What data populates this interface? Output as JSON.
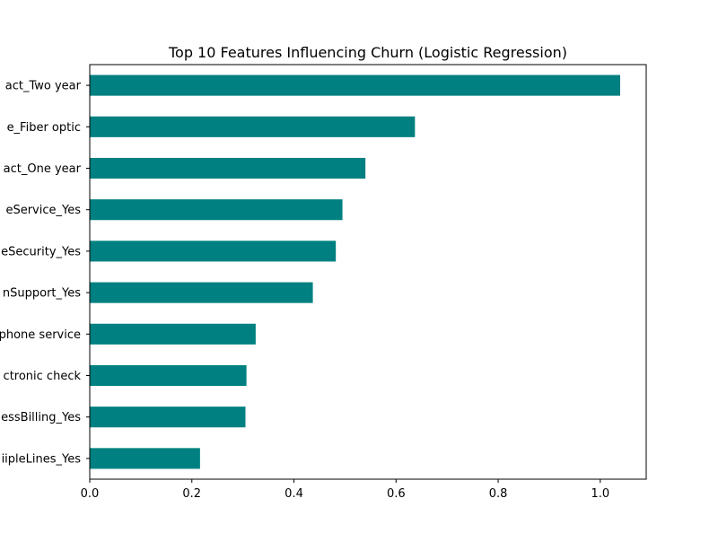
{
  "chart_data": {
    "type": "bar",
    "orientation": "horizontal",
    "title": "Top 10 Features Influencing Churn (Logistic Regression)",
    "xlabel": "",
    "ylabel": "",
    "xlim": [
      0,
      1.09
    ],
    "xticks": [
      0.0,
      0.2,
      0.4,
      0.6,
      0.8,
      1.0
    ],
    "xtick_labels": [
      "0.0",
      "0.2",
      "0.4",
      "0.6",
      "0.8",
      "1.0"
    ],
    "grid": false,
    "bar_color": "#008080",
    "categories": [
      "iipleLines_Yes",
      "essBilling_Yes",
      "ctronic check",
      "phone service",
      "nSupport_Yes",
      "eSecurity_Yes",
      "eService_Yes",
      "act_One year",
      "e_Fiber optic",
      "act_Two year"
    ],
    "values": [
      0.216,
      0.305,
      0.307,
      0.325,
      0.437,
      0.482,
      0.495,
      0.54,
      0.637,
      1.039
    ]
  }
}
